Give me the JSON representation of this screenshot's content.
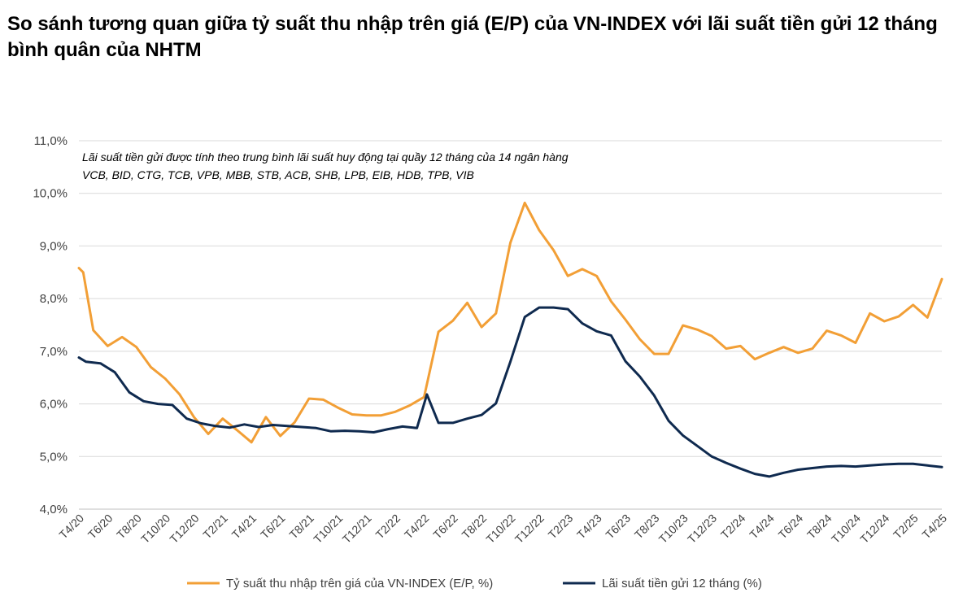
{
  "title": "So sánh tương quan giữa tỷ suất thu nhập trên giá (E/P) của VN-INDEX với lãi suất tiền gửi 12 tháng bình quân của NHTM",
  "chart_data": {
    "type": "line",
    "title": "So sánh tương quan giữa tỷ suất thu nhập trên giá (E/P) của VN-INDEX với lãi suất tiền gửi 12 tháng bình quân của NHTM",
    "annotation": [
      "Lãi suất tiền gửi được tính theo trung bình lãi suất huy động tại quầy 12 tháng của 14 ngân hàng",
      "VCB, BID, CTG, TCB, VPB, MBB, STB, ACB, SHB, LPB, EIB, HDB, TPB, VIB"
    ],
    "y_ticks": [
      "4,0%",
      "5,0%",
      "6,0%",
      "7,0%",
      "8,0%",
      "9,0%",
      "10,0%",
      "11,0%"
    ],
    "ylim": [
      4,
      11
    ],
    "x_tick_labels": [
      "T4/20",
      "T6/20",
      "T8/20",
      "T10/20",
      "T12/20",
      "T2/21",
      "T4/21",
      "T6/21",
      "T8/21",
      "T10/21",
      "T12/21",
      "T2/22",
      "T4/22",
      "T6/22",
      "T8/22",
      "T10/22",
      "T12/22",
      "T2/23",
      "T4/23",
      "T6/23",
      "T8/23",
      "T10/23",
      "T12/23",
      "T2/24",
      "T4/24",
      "T6/24",
      "T8/24",
      "T10/24",
      "T12/24",
      "T2/25",
      "T4/25"
    ],
    "grid": true,
    "legend_position": "bottom",
    "series": [
      {
        "name": "Tỷ suất thu nhập trên giá của VN-INDEX (E/P, %)",
        "color": "#F29F36",
        "points": [
          [
            0,
            8.58
          ],
          [
            0.3,
            8.5
          ],
          [
            1,
            7.4
          ],
          [
            2,
            7.1
          ],
          [
            3,
            7.27
          ],
          [
            4,
            7.08
          ],
          [
            5,
            6.7
          ],
          [
            6,
            6.48
          ],
          [
            7,
            6.18
          ],
          [
            8,
            5.75
          ],
          [
            9,
            5.43
          ],
          [
            10,
            5.72
          ],
          [
            11,
            5.5
          ],
          [
            12,
            5.27
          ],
          [
            13,
            5.75
          ],
          [
            14,
            5.39
          ],
          [
            15,
            5.65
          ],
          [
            16,
            6.1
          ],
          [
            17,
            6.08
          ],
          [
            18,
            5.93
          ],
          [
            19,
            5.8
          ],
          [
            20,
            5.78
          ],
          [
            21,
            5.78
          ],
          [
            22,
            5.85
          ],
          [
            23,
            5.97
          ],
          [
            24,
            6.13
          ],
          [
            25,
            7.37
          ],
          [
            26,
            7.58
          ],
          [
            27,
            7.92
          ],
          [
            28,
            7.46
          ],
          [
            29,
            7.72
          ],
          [
            30,
            9.06
          ],
          [
            31,
            9.82
          ],
          [
            32,
            9.3
          ],
          [
            33,
            8.92
          ],
          [
            34,
            8.43
          ],
          [
            35,
            8.56
          ],
          [
            36,
            8.43
          ],
          [
            37,
            7.95
          ],
          [
            38,
            7.6
          ],
          [
            39,
            7.23
          ],
          [
            40,
            6.95
          ],
          [
            41,
            6.95
          ],
          [
            42,
            7.49
          ],
          [
            43,
            7.41
          ],
          [
            44,
            7.29
          ],
          [
            45,
            7.05
          ],
          [
            46,
            7.1
          ],
          [
            47,
            6.85
          ],
          [
            48,
            6.97
          ],
          [
            49,
            7.08
          ],
          [
            50,
            6.97
          ],
          [
            51,
            7.05
          ],
          [
            52,
            7.39
          ],
          [
            53,
            7.3
          ],
          [
            54,
            7.16
          ],
          [
            55,
            7.72
          ],
          [
            56,
            7.57
          ],
          [
            57,
            7.66
          ],
          [
            58,
            7.88
          ],
          [
            59,
            7.64
          ],
          [
            60,
            8.37
          ]
        ]
      },
      {
        "name": "Lãi suất tiền gửi 12 tháng (%)",
        "color": "#0F2A4F",
        "points": [
          [
            0,
            6.88
          ],
          [
            0.5,
            6.8
          ],
          [
            1.5,
            6.77
          ],
          [
            2.5,
            6.6
          ],
          [
            3.5,
            6.22
          ],
          [
            4.5,
            6.05
          ],
          [
            5.5,
            6.0
          ],
          [
            6.5,
            5.98
          ],
          [
            7.5,
            5.72
          ],
          [
            8.5,
            5.63
          ],
          [
            9.5,
            5.58
          ],
          [
            10.5,
            5.55
          ],
          [
            11.5,
            5.61
          ],
          [
            12.5,
            5.56
          ],
          [
            13.5,
            5.6
          ],
          [
            14.5,
            5.58
          ],
          [
            15.5,
            5.56
          ],
          [
            16.5,
            5.54
          ],
          [
            17.5,
            5.48
          ],
          [
            18.5,
            5.49
          ],
          [
            19.5,
            5.48
          ],
          [
            20.5,
            5.46
          ],
          [
            21.5,
            5.52
          ],
          [
            22.5,
            5.57
          ],
          [
            23.5,
            5.54
          ],
          [
            24.2,
            6.18
          ],
          [
            25,
            5.64
          ],
          [
            26,
            5.64
          ],
          [
            27,
            5.72
          ],
          [
            28,
            5.79
          ],
          [
            29,
            6.01
          ],
          [
            30,
            6.8
          ],
          [
            31,
            7.65
          ],
          [
            32,
            7.83
          ],
          [
            33,
            7.83
          ],
          [
            34,
            7.8
          ],
          [
            35,
            7.53
          ],
          [
            36,
            7.38
          ],
          [
            37,
            7.3
          ],
          [
            38,
            6.81
          ],
          [
            39,
            6.52
          ],
          [
            40,
            6.16
          ],
          [
            41,
            5.68
          ],
          [
            42,
            5.4
          ],
          [
            43,
            5.2
          ],
          [
            44,
            5.0
          ],
          [
            45,
            4.88
          ],
          [
            46,
            4.77
          ],
          [
            47,
            4.67
          ],
          [
            48,
            4.62
          ],
          [
            49,
            4.69
          ],
          [
            50,
            4.75
          ],
          [
            51,
            4.78
          ],
          [
            52,
            4.81
          ],
          [
            53,
            4.82
          ],
          [
            54,
            4.81
          ],
          [
            55,
            4.83
          ],
          [
            56,
            4.85
          ],
          [
            57,
            4.86
          ],
          [
            58,
            4.86
          ],
          [
            59,
            4.83
          ],
          [
            60,
            4.8
          ]
        ]
      }
    ]
  }
}
